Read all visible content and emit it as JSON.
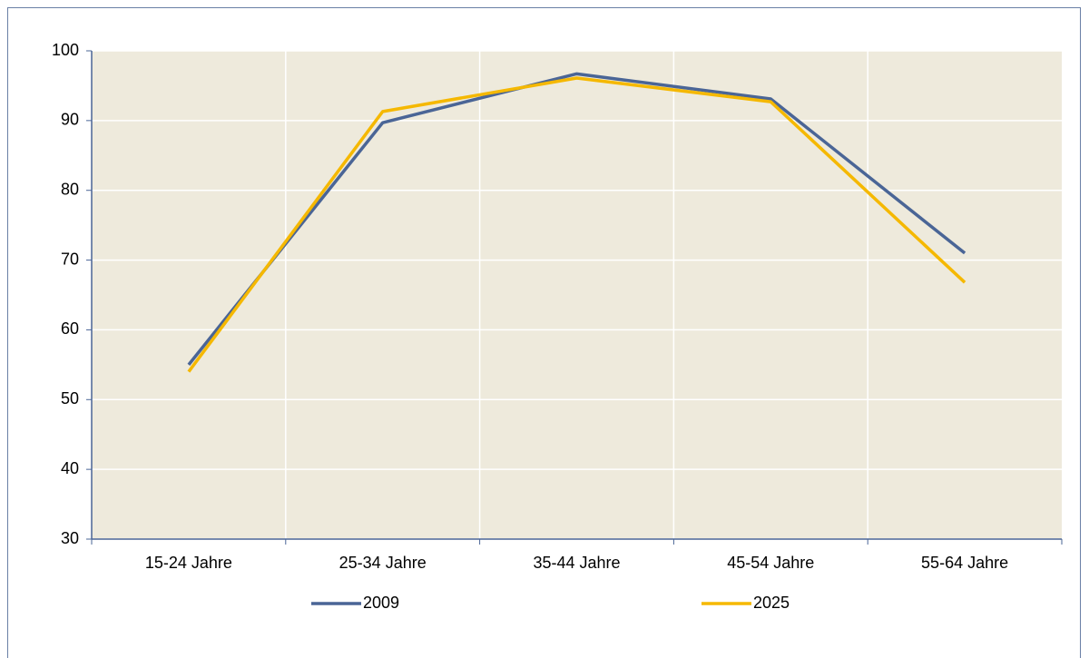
{
  "chart_data": {
    "type": "line",
    "categories": [
      "15-24 Jahre",
      "25-34 Jahre",
      "35-44 Jahre",
      "45-54 Jahre",
      "55-64 Jahre"
    ],
    "series": [
      {
        "name": "2009",
        "color": "#4a6596",
        "values": [
          55.0,
          89.7,
          96.7,
          93.1,
          71.0
        ]
      },
      {
        "name": "2025",
        "color": "#f5b800",
        "values": [
          54.0,
          91.3,
          96.1,
          92.7,
          66.8
        ]
      }
    ],
    "ylim": [
      30,
      100
    ],
    "yticks": [
      30,
      40,
      50,
      60,
      70,
      80,
      90,
      100
    ],
    "grid": true,
    "legend": "bottom"
  }
}
